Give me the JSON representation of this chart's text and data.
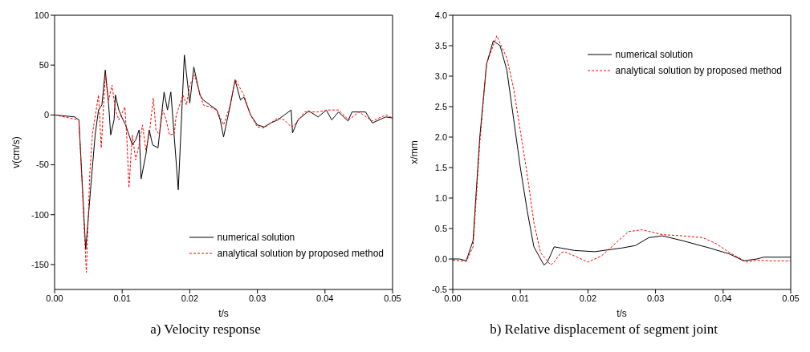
{
  "chart_data": [
    {
      "type": "line",
      "title": "a) Velocity response",
      "xlabel": "t/s",
      "ylabel": "v(cm/s)",
      "xlim": [
        0,
        0.05
      ],
      "ylim": [
        -175,
        100
      ],
      "xticks": [
        {
          "value": 0,
          "label": "0.00"
        },
        {
          "value": 0.01,
          "label": "0.01"
        },
        {
          "value": 0.02,
          "label": "0.02"
        },
        {
          "value": 0.03,
          "label": "0.03"
        },
        {
          "value": 0.04,
          "label": "0.04"
        },
        {
          "value": 0.05,
          "label": "0.05"
        }
      ],
      "yticks": [
        -150,
        -100,
        -50,
        0,
        50,
        100
      ],
      "legend": "bottom right",
      "marker": "none",
      "series": [
        {
          "name": "numerical solution",
          "color": "#000000",
          "line_style": "solid",
          "x": [
            0,
            0.003,
            0.0036,
            0.0046,
            0.0055,
            0.006,
            0.0065,
            0.007,
            0.0075,
            0.008,
            0.0083,
            0.0088,
            0.009,
            0.0095,
            0.01,
            0.0105,
            0.011,
            0.0115,
            0.012,
            0.0125,
            0.0128,
            0.0135,
            0.014,
            0.0145,
            0.0153,
            0.0162,
            0.0167,
            0.0172,
            0.0183,
            0.0192,
            0.02,
            0.0206,
            0.0215,
            0.022,
            0.023,
            0.024,
            0.0245,
            0.025,
            0.026,
            0.0267,
            0.0275,
            0.028,
            0.029,
            0.03,
            0.031,
            0.032,
            0.033,
            0.034,
            0.035,
            0.0352,
            0.036,
            0.0376,
            0.039,
            0.0402,
            0.041,
            0.042,
            0.0434,
            0.044,
            0.046,
            0.047,
            0.049,
            0.05
          ],
          "values": [
            0,
            -2,
            -5,
            -135,
            -60,
            -20,
            5,
            10,
            45,
            10,
            -20,
            -5,
            20,
            5,
            -3,
            -10,
            -20,
            -30,
            -25,
            -15,
            -64,
            -40,
            -15,
            -30,
            -33,
            23,
            5,
            23,
            -75,
            60,
            12,
            48,
            20,
            15,
            10,
            5,
            -5,
            -22,
            10,
            35,
            15,
            18,
            0,
            -10,
            -12,
            -8,
            -5,
            0,
            5,
            -18,
            -5,
            4,
            -2,
            5,
            -5,
            3,
            -6,
            3,
            3,
            -8,
            -2,
            -3
          ]
        },
        {
          "name": "analytical solution by proposed method",
          "color": "#ff0000",
          "line_style": "dashed",
          "x": [
            0,
            0.0036,
            0.0047,
            0.0052,
            0.0056,
            0.0065,
            0.0069,
            0.0075,
            0.008,
            0.0085,
            0.009,
            0.0095,
            0.0104,
            0.0107,
            0.011,
            0.0115,
            0.012,
            0.0125,
            0.013,
            0.0135,
            0.014,
            0.0146,
            0.015,
            0.0155,
            0.016,
            0.0165,
            0.017,
            0.0177,
            0.018,
            0.019,
            0.0195,
            0.02,
            0.0207,
            0.022,
            0.023,
            0.024,
            0.025,
            0.026,
            0.0267,
            0.028,
            0.029,
            0.03,
            0.031,
            0.032,
            0.033,
            0.034,
            0.035,
            0.0355,
            0.037,
            0.039,
            0.0405,
            0.042,
            0.0435,
            0.045,
            0.047,
            0.049,
            0.05
          ],
          "values": [
            0,
            -5,
            -158,
            -60,
            -19,
            20,
            -33,
            40,
            15,
            30,
            5,
            -5,
            8,
            -25,
            -73,
            -20,
            -45,
            -30,
            -10,
            -35,
            -20,
            17,
            -15,
            -20,
            5,
            -5,
            -20,
            -19,
            0,
            20,
            10,
            30,
            40,
            10,
            8,
            5,
            -10,
            10,
            36,
            20,
            0,
            -12,
            -13,
            -8,
            -3,
            -5,
            -12,
            -10,
            3,
            3,
            5,
            5,
            -5,
            3,
            -6,
            0,
            -3
          ]
        }
      ]
    },
    {
      "type": "line",
      "title": "b) Relative displacement of segment joint",
      "xlabel": "t/s",
      "ylabel": "x/mm",
      "xlim": [
        0,
        0.05
      ],
      "ylim": [
        -0.5,
        4.0
      ],
      "xticks": [
        {
          "value": 0,
          "label": "0.00"
        },
        {
          "value": 0.01,
          "label": "0.01"
        },
        {
          "value": 0.02,
          "label": "0.02"
        },
        {
          "value": 0.03,
          "label": "0.03"
        },
        {
          "value": 0.04,
          "label": "0.04"
        },
        {
          "value": 0.05,
          "label": "0.05"
        }
      ],
      "yticks": [
        {
          "value": -0.5,
          "label": "-0.5"
        },
        {
          "value": 0,
          "label": "0.0"
        },
        {
          "value": 0.5,
          "label": "0.5"
        },
        {
          "value": 1,
          "label": "1.0"
        },
        {
          "value": 1.5,
          "label": "1.5"
        },
        {
          "value": 2,
          "label": "2.0"
        },
        {
          "value": 2.5,
          "label": "2.5"
        },
        {
          "value": 3,
          "label": "3.0"
        },
        {
          "value": 3.5,
          "label": "3.5"
        },
        {
          "value": 4,
          "label": "4.0"
        }
      ],
      "legend": "top right",
      "marker": "none",
      "series": [
        {
          "name": "numerical solution",
          "color": "#000000",
          "line_style": "solid",
          "x": [
            0,
            0.001,
            0.002,
            0.003,
            0.004,
            0.005,
            0.006,
            0.007,
            0.008,
            0.009,
            0.01,
            0.011,
            0.012,
            0.0135,
            0.014,
            0.015,
            0.016,
            0.018,
            0.021,
            0.025,
            0.027,
            0.029,
            0.031,
            0.034,
            0.038,
            0.041,
            0.043,
            0.045,
            0.046,
            0.05
          ],
          "values": [
            0,
            0,
            -0.03,
            0.3,
            2.0,
            3.2,
            3.58,
            3.5,
            3.1,
            2.3,
            1.5,
            0.8,
            0.2,
            -0.1,
            -0.05,
            0.2,
            0.18,
            0.14,
            0.12,
            0.18,
            0.22,
            0.35,
            0.38,
            0.3,
            0.18,
            0.08,
            -0.03,
            0,
            0.03,
            0.03
          ]
        },
        {
          "name": "analytical solution by proposed method",
          "color": "#ff0000",
          "line_style": "dashed",
          "x": [
            0,
            0.002,
            0.003,
            0.004,
            0.005,
            0.0065,
            0.008,
            0.009,
            0.01,
            0.011,
            0.012,
            0.013,
            0.0145,
            0.015,
            0.016,
            0.0165,
            0.018,
            0.02,
            0.022,
            0.024,
            0.026,
            0.028,
            0.031,
            0.034,
            0.037,
            0.039,
            0.041,
            0.0435,
            0.045,
            0.047,
            0.05
          ],
          "values": [
            -0.02,
            -0.04,
            0.2,
            1.9,
            3.2,
            3.66,
            3.3,
            2.8,
            2.1,
            1.4,
            0.6,
            0.1,
            -0.1,
            -0.05,
            0.1,
            0.12,
            0.05,
            -0.05,
            0.05,
            0.25,
            0.45,
            0.48,
            0.4,
            0.38,
            0.35,
            0.25,
            0.1,
            -0.05,
            -0.02,
            -0.03,
            -0.03
          ]
        }
      ]
    }
  ]
}
